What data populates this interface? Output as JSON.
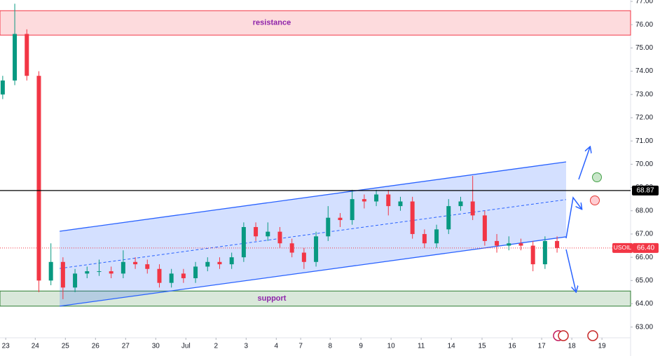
{
  "chart_data": {
    "type": "candlestick",
    "symbol": "USOIL",
    "x": [
      -0.1,
      0.3,
      0.7,
      1.1,
      1.5,
      1.9,
      2.3,
      2.7,
      3.1,
      3.5,
      3.9,
      4.3,
      4.7,
      5.1,
      5.5,
      5.9,
      6.3,
      6.7,
      7.1,
      7.5,
      7.9,
      8.3,
      8.7,
      9.1,
      9.5,
      9.9,
      10.3,
      10.7,
      11.1,
      11.5,
      11.9,
      12.3,
      12.7,
      13.1,
      13.5,
      13.9,
      14.3,
      14.7,
      15.1,
      15.5,
      15.9,
      16.3,
      16.7,
      17.1,
      17.5,
      17.9,
      18.3
    ],
    "open": [
      73.0,
      73.6,
      75.6,
      73.8,
      65.0,
      65.8,
      64.7,
      65.3,
      65.4,
      65.4,
      65.3,
      65.8,
      65.7,
      65.5,
      64.9,
      65.3,
      65.1,
      65.6,
      65.8,
      65.7,
      66.0,
      67.3,
      66.9,
      67.1,
      66.6,
      66.2,
      65.8,
      66.9,
      67.7,
      67.6,
      68.5,
      68.4,
      68.7,
      68.2,
      68.4,
      67.0,
      66.6,
      67.2,
      68.2,
      68.4,
      67.8,
      66.7,
      66.5,
      66.6,
      66.5,
      65.7,
      66.7
    ],
    "high": [
      73.8,
      76.9,
      75.8,
      74.0,
      66.6,
      66.0,
      65.5,
      65.6,
      65.9,
      65.6,
      66.3,
      66.0,
      65.9,
      65.7,
      65.5,
      65.5,
      65.8,
      66.0,
      66.0,
      66.2,
      67.5,
      67.5,
      67.5,
      67.3,
      66.8,
      66.4,
      67.1,
      68.2,
      67.9,
      68.9,
      68.7,
      68.9,
      68.9,
      68.6,
      68.6,
      67.2,
      67.4,
      68.5,
      68.6,
      69.5,
      68.0,
      67.0,
      66.9,
      66.8,
      66.7,
      66.9,
      66.9
    ],
    "low": [
      72.8,
      73.4,
      73.6,
      64.5,
      64.8,
      64.2,
      64.5,
      65.1,
      65.2,
      65.1,
      65.1,
      65.5,
      65.3,
      64.7,
      64.7,
      64.9,
      64.9,
      65.4,
      65.5,
      65.5,
      65.8,
      66.7,
      66.7,
      66.4,
      66.0,
      65.5,
      65.6,
      66.7,
      67.3,
      67.4,
      68.1,
      68.2,
      67.8,
      68.0,
      66.8,
      66.4,
      66.4,
      67.0,
      68.0,
      67.6,
      66.5,
      66.2,
      66.3,
      66.3,
      65.4,
      65.5,
      66.2
    ],
    "close": [
      73.6,
      75.6,
      73.8,
      65.0,
      65.8,
      64.7,
      65.3,
      65.4,
      65.4,
      65.3,
      65.8,
      65.7,
      65.5,
      64.9,
      65.3,
      65.1,
      65.6,
      65.8,
      65.7,
      66.0,
      67.3,
      66.9,
      67.1,
      66.6,
      66.2,
      65.8,
      66.9,
      67.7,
      67.6,
      68.5,
      68.4,
      68.7,
      68.2,
      68.4,
      67.0,
      66.6,
      67.2,
      68.2,
      68.4,
      67.8,
      66.7,
      66.5,
      66.6,
      66.5,
      65.7,
      66.7,
      66.4
    ],
    "up_color": "#089981",
    "down_color": "#f23645",
    "xlim": [
      -0.19,
      20.74
    ],
    "ylim": [
      62.6,
      77.06
    ],
    "xticks": [
      {
        "value": 0,
        "label": "23"
      },
      {
        "value": 0.98,
        "label": "24"
      },
      {
        "value": 1.98,
        "label": "25"
      },
      {
        "value": 2.98,
        "label": "26"
      },
      {
        "value": 3.98,
        "label": "27"
      },
      {
        "value": 4.98,
        "label": "30"
      },
      {
        "value": 5.98,
        "label": "Jul"
      },
      {
        "value": 6.98,
        "label": "2"
      },
      {
        "value": 7.98,
        "label": "3"
      },
      {
        "value": 8.98,
        "label": "4"
      },
      {
        "value": 9.79,
        "label": "7"
      },
      {
        "value": 10.77,
        "label": "8"
      },
      {
        "value": 11.79,
        "label": "9"
      },
      {
        "value": 12.79,
        "label": "10"
      },
      {
        "value": 13.79,
        "label": "11"
      },
      {
        "value": 14.79,
        "label": "14"
      },
      {
        "value": 15.81,
        "label": "15"
      },
      {
        "value": 16.81,
        "label": "16"
      },
      {
        "value": 17.79,
        "label": "17"
      },
      {
        "value": 18.79,
        "label": "18"
      },
      {
        "value": 19.79,
        "label": "19"
      }
    ],
    "yticks": [
      {
        "value": 63,
        "label": "63.00"
      },
      {
        "value": 64,
        "label": "64.00"
      },
      {
        "value": 65,
        "label": "65.00"
      },
      {
        "value": 66,
        "label": "66.00"
      },
      {
        "value": 67,
        "label": "67.00"
      },
      {
        "value": 68,
        "label": "68.00"
      },
      {
        "value": 69,
        "label": "69.00"
      },
      {
        "value": 70,
        "label": "70.00"
      },
      {
        "value": 71,
        "label": "71.00"
      },
      {
        "value": 72,
        "label": "72.00"
      },
      {
        "value": 73,
        "label": "73.00"
      },
      {
        "value": 74,
        "label": "74.00"
      },
      {
        "value": 75,
        "label": "75.00"
      },
      {
        "value": 76,
        "label": "76.00"
      },
      {
        "value": 77,
        "label": "77.00"
      }
    ],
    "zones": [
      {
        "label": "resistance",
        "from": 75.55,
        "to": 76.6,
        "color": "#f23645"
      },
      {
        "label": "support",
        "from": 63.9,
        "to": 64.55,
        "color": "#2e7d32"
      }
    ],
    "level": {
      "value": 68.87,
      "color": "#000000"
    },
    "last_price": {
      "value": 66.4,
      "label": "66.40",
      "color": "#f23645"
    },
    "channel": {
      "x": [
        1.79,
        18.6
      ],
      "lower": [
        63.9,
        66.88
      ],
      "upper": [
        67.12,
        70.1
      ],
      "middle": [
        65.52,
        68.48
      ],
      "color": "#2962ff"
    }
  }
}
